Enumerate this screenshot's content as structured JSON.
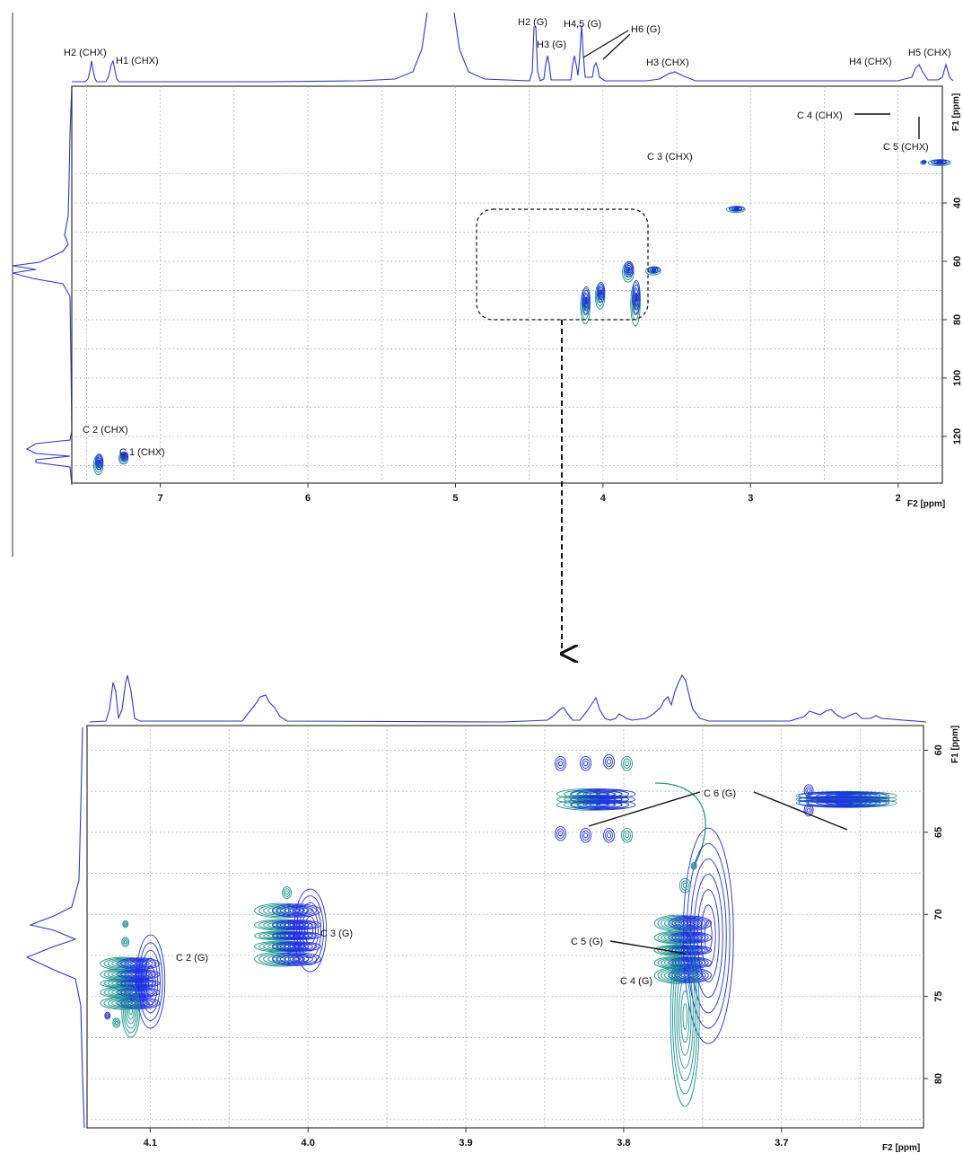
{
  "colors": {
    "blue": "#1f2ee8",
    "teal": "#17968a",
    "grid": "#9a9a9a",
    "frame": "#333333"
  },
  "chart_data": [
    {
      "type": "heatmap",
      "subtype": "2D NMR (HSQC) contour plot",
      "xlabel": "F2 [ppm]",
      "ylabel": "F1 [ppm]",
      "xlim": [
        7.6,
        1.7
      ],
      "ylim": [
        0,
        136
      ],
      "x_reversed": true,
      "x_ticks": [
        7,
        6,
        5,
        4,
        3,
        2
      ],
      "y_ticks": [
        40,
        60,
        80,
        100,
        120
      ],
      "grid": true,
      "proton_labels": [
        {
          "text": "H2 (CHX)",
          "ppm": 7.42
        },
        {
          "text": "H1 (CHX)",
          "ppm": 7.25
        },
        {
          "text": "H2 (G)",
          "ppm": 4.15
        },
        {
          "text": "H3 (G)",
          "ppm": 4.06
        },
        {
          "text": "H4,5 (G)",
          "ppm": 3.82
        },
        {
          "text": "H6 (G)",
          "ppm": 3.69
        },
        {
          "text": "H3 (CHX)",
          "ppm": 3.1
        },
        {
          "text": "H4 (CHX)",
          "ppm": 1.83
        },
        {
          "text": "H5 (CHX)",
          "ppm": 1.72
        }
      ],
      "cross_peaks": [
        {
          "label": "C 2 (CHX)",
          "x": 7.42,
          "y": 129
        },
        {
          "label": "C 1 (CHX)",
          "x": 7.25,
          "y": 127
        },
        {
          "label": "C 3 (CHX)",
          "x": 3.1,
          "y": 42
        },
        {
          "label": "C 4 (CHX)",
          "x": 1.83,
          "y": 26
        },
        {
          "label": "C 5 (CHX)",
          "x": 1.72,
          "y": 26
        },
        {
          "label": "",
          "x": 4.12,
          "y": 74
        },
        {
          "label": "",
          "x": 4.02,
          "y": 71
        },
        {
          "label": "",
          "x": 3.83,
          "y": 63
        },
        {
          "label": "",
          "x": 3.78,
          "y": 73
        },
        {
          "label": "",
          "x": 3.66,
          "y": 63
        }
      ]
    },
    {
      "type": "heatmap",
      "subtype": "2D NMR (HSQC) contour plot, expansion",
      "xlabel": "F2 [ppm]",
      "ylabel": "F1 [ppm]",
      "xlim": [
        4.14,
        3.61
      ],
      "ylim": [
        58.5,
        83
      ],
      "x_reversed": true,
      "x_ticks": [
        4.1,
        4.0,
        3.9,
        3.8,
        3.7
      ],
      "y_ticks": [
        60,
        65,
        70,
        75,
        80
      ],
      "grid": true,
      "cross_peaks": [
        {
          "label": "C 2 (G)",
          "x": 4.11,
          "y": 74.2
        },
        {
          "label": "C 3 (G)",
          "x": 4.01,
          "y": 71.3
        },
        {
          "label": "C 6 (G)",
          "x": 3.83,
          "y": 63.0
        },
        {
          "label": "C 6 (G)",
          "x": 3.66,
          "y": 63.0
        },
        {
          "label": "C 5 (G)",
          "x": 3.76,
          "y": 71.5
        },
        {
          "label": "C 4 (G)",
          "x": 3.76,
          "y": 73.0
        }
      ]
    }
  ]
}
